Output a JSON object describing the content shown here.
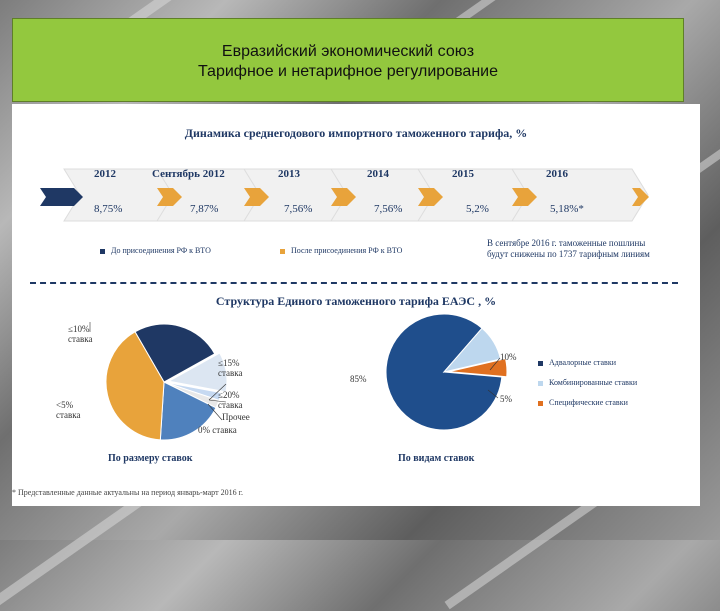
{
  "header": {
    "line1": "Евразийский экономический союз",
    "line2": "Тарифное и нетарифное регулирование"
  },
  "tariff_dynamics": {
    "title": "Динамика среднегодового импортного таможенного тарифа, %",
    "years": [
      "2012",
      "Сентябрь 2012",
      "2013",
      "2014",
      "2015",
      "2016"
    ],
    "rates": [
      "8,75%",
      "7,87%",
      "7,56%",
      "7,56%",
      "5,2%",
      "5,18%*"
    ],
    "legend": [
      {
        "label": "До присоединения РФ к ВТО",
        "color": "#1f3864"
      },
      {
        "label": "После присоединения РФ к ВТО",
        "color": "#e8a33b"
      }
    ],
    "note": [
      "В сентябре 2016 г. таможенные пошлины",
      "будут снижены по 1737 тарифным линиям"
    ]
  },
  "structure": {
    "title": "Структура Единого таможенного тарифа ЕАЭС , %",
    "pie1": {
      "caption": "По размеру ставок",
      "labels": [
        [
          "≤10%",
          "ставка"
        ],
        [
          "≤15%",
          "ставка"
        ],
        [
          "≤20%",
          "ставка"
        ],
        [
          "Прочее"
        ],
        [
          "0% ставка"
        ],
        [
          "<5%",
          "ставка"
        ]
      ]
    },
    "pie2": {
      "caption": "По видам ставок",
      "labels": [
        "10%",
        "85%",
        "5%"
      ],
      "legend": [
        {
          "label": "Адвалорные ставки",
          "color": "#1f3864"
        },
        {
          "label": "Комбинированные ставки",
          "color": "#bdd7ee"
        },
        {
          "label": "Специфические ставки",
          "color": "#e07020"
        }
      ]
    }
  },
  "footnote": "* Представленные данные актуальны на период январь-март 2016 г.",
  "chart_data": [
    {
      "type": "table",
      "title": "Динамика среднегодового импортного таможенного тарифа, %",
      "categories": [
        "2012",
        "Сентябрь 2012",
        "2013",
        "2014",
        "2015",
        "2016"
      ],
      "values": [
        8.75,
        7.87,
        7.56,
        7.56,
        5.2,
        5.18
      ]
    },
    {
      "type": "pie",
      "title": "По размеру ставок",
      "categories": [
        "≤10% ставка",
        "≤15% ставка",
        "≤20% ставка",
        "Прочее",
        "0% ставка",
        "<5% ставка"
      ],
      "values": [
        23,
        10,
        2,
        2,
        17,
        37
      ],
      "colors": [
        "#1f3864",
        "#dce6f2",
        "#c6d9f1",
        "#e8e8e8",
        "#4f81bd",
        "#e8a33b"
      ]
    },
    {
      "type": "pie",
      "title": "По видам ставок",
      "categories": [
        "Адвалорные ставки",
        "Комбинированные ставки",
        "Специфические ставки"
      ],
      "values": [
        85,
        10,
        5
      ],
      "colors": [
        "#1f4e8c",
        "#bdd7ee",
        "#e07020"
      ]
    }
  ]
}
